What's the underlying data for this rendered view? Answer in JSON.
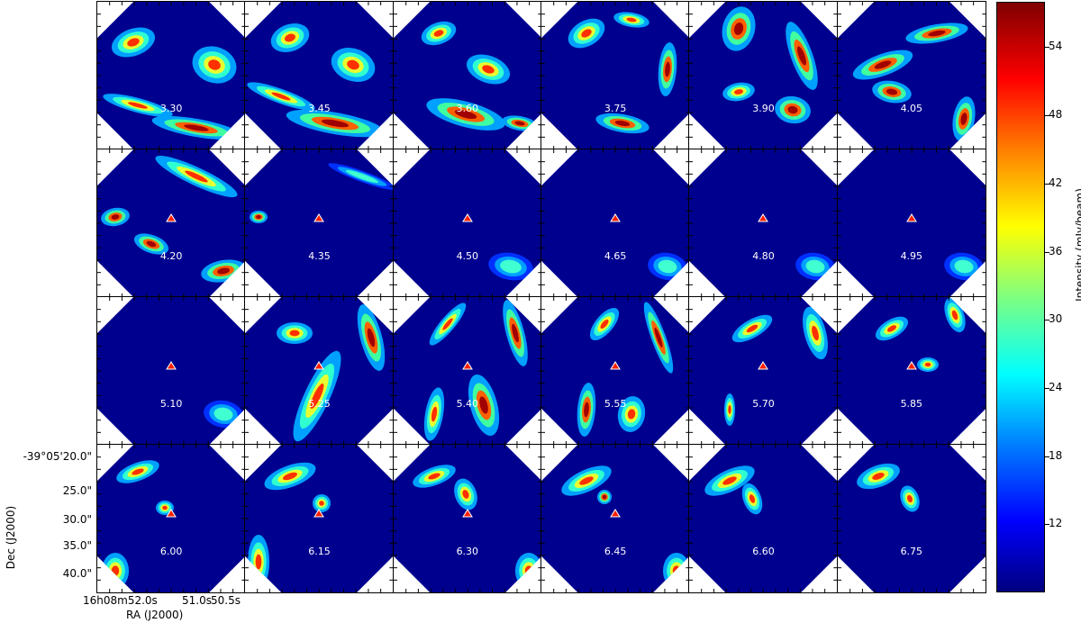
{
  "chart_data": {
    "type": "heatmap",
    "layout": "channel-map grid",
    "rows": 4,
    "cols": 6,
    "colormap": "jet",
    "channels": [
      "3.30",
      "3.45",
      "3.60",
      "3.75",
      "3.90",
      "4.05",
      "4.20",
      "4.35",
      "4.50",
      "4.65",
      "4.80",
      "4.95",
      "5.10",
      "5.25",
      "5.40",
      "5.55",
      "5.70",
      "5.85",
      "6.00",
      "6.15",
      "6.30",
      "6.45",
      "6.60",
      "6.75"
    ],
    "xlabel": "RA (J2000)",
    "ylabel": "Dec (J2000)",
    "x_ticklabels": [
      "16h08m52.0s",
      "51.0s",
      "50.5s"
    ],
    "y_ticklabels": [
      "-39°05'20.0\"",
      "25.0\"",
      "30.0\"",
      "35.0\"",
      "40.0\""
    ],
    "colorbar": {
      "label": "Intensity (mJy/beam)",
      "ticks": [
        12,
        18,
        24,
        30,
        36,
        42,
        48,
        54
      ],
      "range": [
        6,
        58
      ]
    }
  }
}
